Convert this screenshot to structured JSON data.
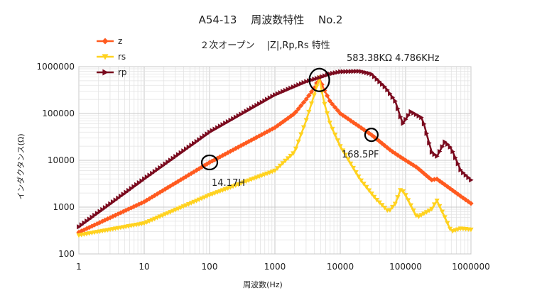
{
  "chart_data": {
    "type": "line",
    "title": "A54-13　 周波数特性　 No.2",
    "subtitle": "２次オープン　 |Z|,Rp,Rs 特性",
    "xlabel": "周波数(Hz)",
    "ylabel": "インダクタンス(Ω)",
    "xscale": "log",
    "yscale": "log",
    "xlim": [
      1,
      1000000
    ],
    "ylim": [
      100,
      1000000
    ],
    "grid": true,
    "legend_position": "top-left",
    "x_ticks": [
      "1",
      "10",
      "100",
      "1000",
      "10000",
      "100000",
      "1000000"
    ],
    "y_ticks": [
      "100",
      "1000",
      "10000",
      "100000",
      "1000000"
    ],
    "series": [
      {
        "name": "z",
        "color": "#ff5a1f",
        "marker": "diamond",
        "points": [
          [
            1,
            290
          ],
          [
            10,
            1300
          ],
          [
            100,
            9000
          ],
          [
            1000,
            50000
          ],
          [
            2000,
            100000
          ],
          [
            3000,
            200000
          ],
          [
            4000,
            350000
          ],
          [
            4786,
            583000
          ],
          [
            5500,
            350000
          ],
          [
            7000,
            180000
          ],
          [
            10000,
            100000
          ],
          [
            30000,
            35000
          ],
          [
            60000,
            16000
          ],
          [
            90000,
            11000
          ],
          [
            150000,
            7000
          ],
          [
            250000,
            3800
          ],
          [
            300000,
            4000
          ],
          [
            400000,
            3000
          ],
          [
            700000,
            1700
          ],
          [
            1000000,
            1200
          ]
        ]
      },
      {
        "name": "rs",
        "color": "#ffd21f",
        "marker": "triangle-down",
        "points": [
          [
            1,
            250
          ],
          [
            10,
            450
          ],
          [
            100,
            1800
          ],
          [
            1000,
            6000
          ],
          [
            2000,
            15000
          ],
          [
            3000,
            70000
          ],
          [
            4000,
            250000
          ],
          [
            4786,
            580000
          ],
          [
            5500,
            200000
          ],
          [
            7000,
            60000
          ],
          [
            10000,
            20000
          ],
          [
            20000,
            4000
          ],
          [
            35000,
            1500
          ],
          [
            55000,
            800
          ],
          [
            70000,
            1200
          ],
          [
            85000,
            2500
          ],
          [
            100000,
            1800
          ],
          [
            150000,
            600
          ],
          [
            250000,
            900
          ],
          [
            300000,
            1400
          ],
          [
            400000,
            600
          ],
          [
            500000,
            300
          ],
          [
            700000,
            350
          ],
          [
            1000000,
            330
          ]
        ]
      },
      {
        "name": "rp",
        "color": "#7a0a1e",
        "marker": "triangle-right",
        "points": [
          [
            1,
            380
          ],
          [
            10,
            4000
          ],
          [
            100,
            40000
          ],
          [
            1000,
            250000
          ],
          [
            3000,
            480000
          ],
          [
            4786,
            583380
          ],
          [
            7000,
            700000
          ],
          [
            10000,
            780000
          ],
          [
            20000,
            800000
          ],
          [
            30000,
            700000
          ],
          [
            50000,
            350000
          ],
          [
            70000,
            180000
          ],
          [
            90000,
            60000
          ],
          [
            120000,
            110000
          ],
          [
            180000,
            80000
          ],
          [
            250000,
            15000
          ],
          [
            300000,
            12000
          ],
          [
            400000,
            25000
          ],
          [
            500000,
            18000
          ],
          [
            700000,
            6000
          ],
          [
            1000000,
            3800
          ]
        ]
      }
    ],
    "annotations": [
      {
        "text": "583.38KΩ 4.786KHz",
        "x": 4786,
        "y": 583380
      },
      {
        "text": "14.17H",
        "x": 100,
        "y": 9000
      },
      {
        "text": "168.5PF",
        "x": 30000,
        "y": 35000
      }
    ]
  }
}
